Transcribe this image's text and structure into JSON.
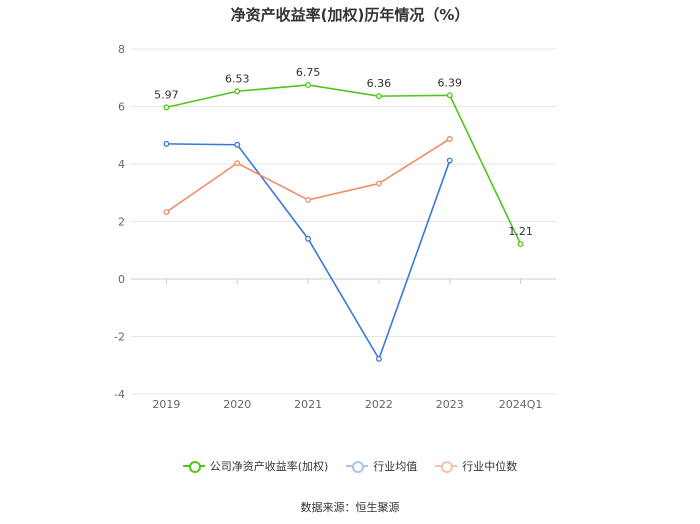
{
  "chart_data": {
    "type": "line",
    "title": "净资产收益率(加权)历年情况（%）",
    "categories": [
      "2019",
      "2020",
      "2021",
      "2022",
      "2023",
      "2024Q1"
    ],
    "yticks": [
      "8",
      "6",
      "4",
      "2",
      "0",
      "-2",
      "-4"
    ],
    "ylim": [
      -4,
      8
    ],
    "grid": true,
    "legend_position": "bottom",
    "series": [
      {
        "name": "公司净资产收益率(加权)",
        "color": "#52c41a",
        "values": [
          5.97,
          6.53,
          6.75,
          6.36,
          6.39,
          1.21
        ],
        "labels": [
          "5.97",
          "6.53",
          "6.75",
          "6.36",
          "6.39",
          "1.21"
        ]
      },
      {
        "name": "行业均值",
        "color": "#3a78d8",
        "values": [
          4.7,
          4.67,
          1.4,
          -2.78,
          4.12,
          null
        ]
      },
      {
        "name": "行业中位数",
        "color": "#f08c64",
        "values": [
          2.33,
          4.03,
          2.75,
          3.32,
          4.87,
          null
        ]
      }
    ]
  },
  "source": "数据来源：恒生聚源"
}
